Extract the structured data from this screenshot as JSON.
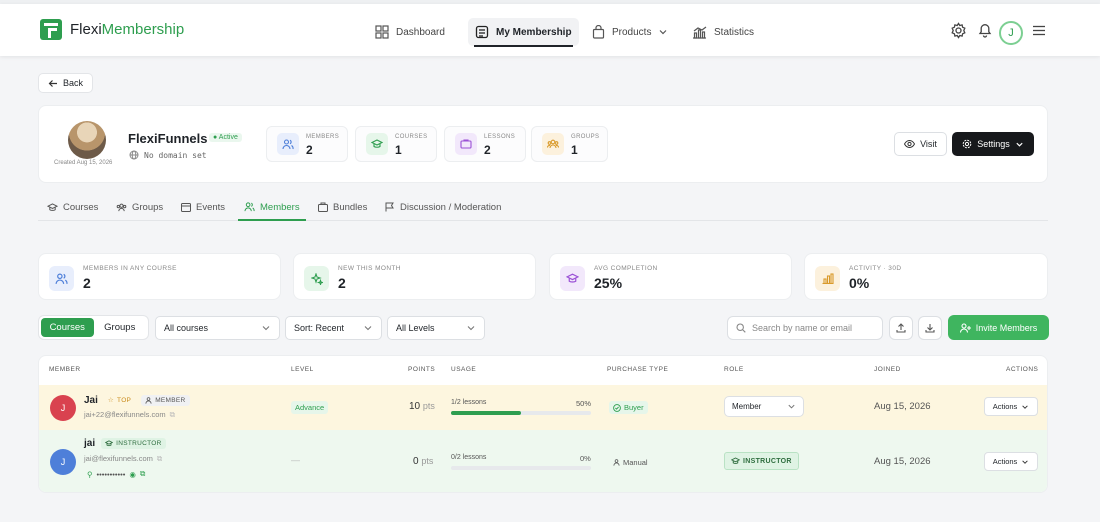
{
  "brand": {
    "name_part1": "Flexi",
    "name_part2": "Membership"
  },
  "nav": {
    "items": [
      {
        "label": "Dashboard",
        "icon": "dashboard-icon"
      },
      {
        "label": "My Membership",
        "icon": "membership-icon"
      },
      {
        "label": "Products",
        "icon": "bag-icon"
      },
      {
        "label": "Statistics",
        "icon": "chart-icon"
      }
    ],
    "avatar_initial": "J"
  },
  "back_label": "Back",
  "community": {
    "name": "FlexiFunnels",
    "status": "Active",
    "created": "Created Aug 15, 2026",
    "domain": "No domain set",
    "stats": [
      {
        "label": "MEMBERS",
        "value": "2"
      },
      {
        "label": "COURSES",
        "value": "1"
      },
      {
        "label": "LESSONS",
        "value": "2"
      },
      {
        "label": "GROUPS",
        "value": "1"
      }
    ],
    "visit_label": "Visit",
    "settings_label": "Settings"
  },
  "tabs": [
    "Courses",
    "Groups",
    "Events",
    "Members",
    "Bundles",
    "Discussion / Moderation"
  ],
  "kpis": [
    {
      "label": "MEMBERS IN ANY COURSE",
      "value": "2"
    },
    {
      "label": "NEW THIS MONTH",
      "value": "2"
    },
    {
      "label": "AVG COMPLETION",
      "value": "25%"
    },
    {
      "label": "ACTIVITY · 30D",
      "value": "0%"
    }
  ],
  "filters": {
    "toggle": [
      "Courses",
      "Groups"
    ],
    "course": "All courses",
    "sort": "Sort: Recent",
    "level": "All Levels",
    "search_placeholder": "Search by name or email",
    "invite_label": "Invite Members"
  },
  "table": {
    "headers": [
      "MEMBER",
      "LEVEL",
      "POINTS",
      "USAGE",
      "PURCHASE TYPE",
      "ROLE",
      "JOINED",
      "ACTIONS"
    ],
    "rows": [
      {
        "initial": "J",
        "name": "Jai",
        "tag1": "TOP",
        "tag2": "MEMBER",
        "email": "jai+22@flexifunnels.com",
        "level": "Advance",
        "points": "10",
        "pts_unit": "pts",
        "usage": "1/2 lessons",
        "pct": "50%",
        "progress": 0.5,
        "purchase": "Buyer",
        "role": "Member",
        "joined": "Aug 15, 2026",
        "actions": "Actions"
      },
      {
        "initial": "J",
        "name": "jai",
        "tag1": "INSTRUCTOR",
        "email": "jai@flexifunnels.com",
        "password": "•••••••••••",
        "level": "—",
        "points": "0",
        "pts_unit": "pts",
        "usage": "0/2 lessons",
        "pct": "0%",
        "progress": 0,
        "purchase": "Manual",
        "role": "INSTRUCTOR",
        "joined": "Aug 15, 2026",
        "actions": "Actions"
      }
    ]
  },
  "colors": {
    "accent": "#2e9e4f",
    "dark": "#17191c",
    "row_top": "#fdf6df",
    "row_instructor": "#eef8ef",
    "avatar1": "#d9424f",
    "avatar2": "#4e7fd9"
  }
}
